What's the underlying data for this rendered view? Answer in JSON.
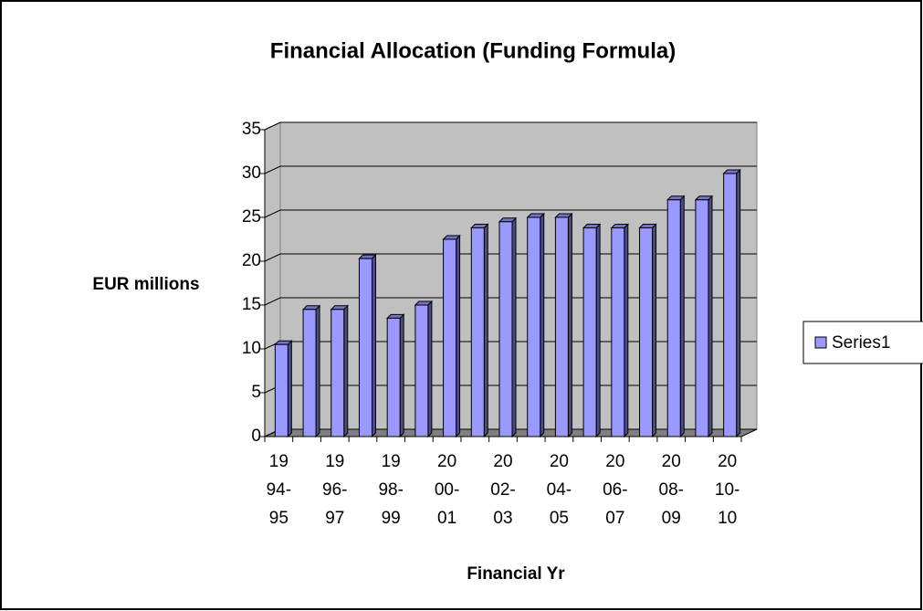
{
  "chart_data": {
    "type": "bar3d",
    "title": "Financial Allocation (Funding Formula)",
    "x_label": "Financial Yr",
    "y_label": "EUR millions",
    "categories": [
      "1994-95",
      null,
      "1996-97",
      null,
      "1998-99",
      null,
      "2000-01",
      null,
      "2002-03",
      null,
      "2004-05",
      null,
      "2006-07",
      null,
      "2008-09",
      null,
      "2010-10"
    ],
    "series": [
      {
        "name": "Series1",
        "color": "#9999ff",
        "values": [
          10.5,
          14.5,
          14.5,
          20.3,
          13.5,
          15,
          22.5,
          23.8,
          24.5,
          25,
          25,
          23.8,
          23.8,
          23.8,
          27,
          27,
          30
        ]
      }
    ],
    "ylim": [
      0,
      35
    ],
    "yticks": [
      0,
      5,
      10,
      15,
      20,
      25,
      30,
      35
    ],
    "grid": true,
    "legend": "right"
  }
}
